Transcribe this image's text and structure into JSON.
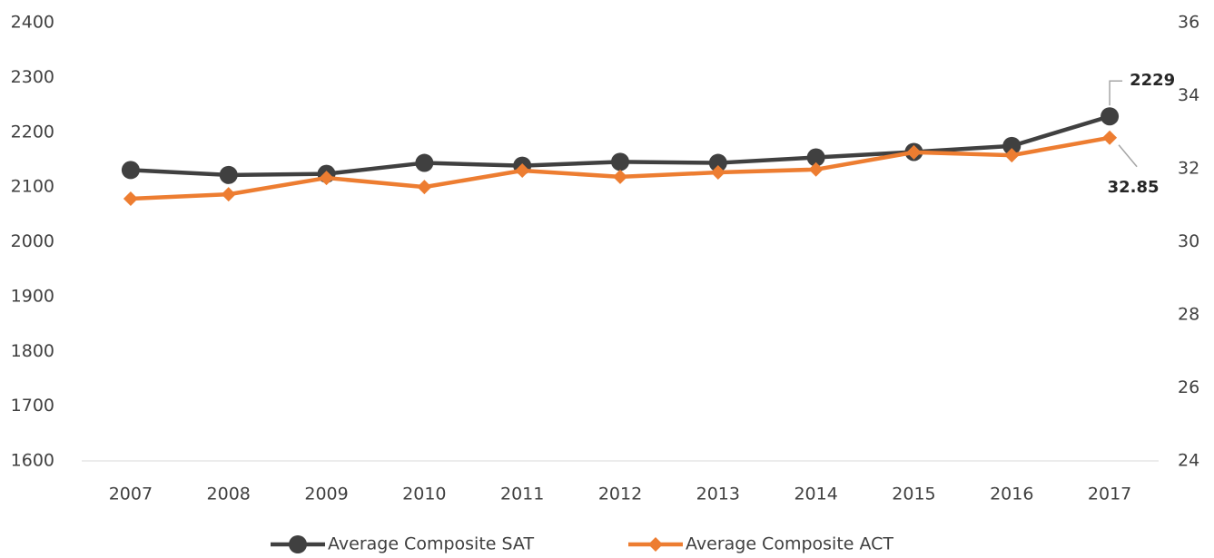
{
  "chart_data": {
    "type": "line",
    "categories": [
      "2007",
      "2008",
      "2009",
      "2010",
      "2011",
      "2012",
      "2013",
      "2014",
      "2015",
      "2016",
      "2017"
    ],
    "series": [
      {
        "name": "Average Composite SAT",
        "color": "#404040",
        "marker": "circle",
        "values": [
          2131,
          2122,
          2124,
          2144,
          2139,
          2146,
          2144,
          2154,
          2164,
          2175,
          2229
        ]
      },
      {
        "name": "Average Composite ACT",
        "color": "#ed7d31",
        "marker": "diamond",
        "axis": "y2",
        "values": [
          31.18,
          31.3,
          31.75,
          31.5,
          31.95,
          31.78,
          31.9,
          31.98,
          32.45,
          32.37,
          32.85
        ]
      }
    ],
    "ylim": [
      1600,
      2400
    ],
    "yticks": [
      1600,
      1700,
      1800,
      1900,
      2000,
      2100,
      2200,
      2300,
      2400
    ],
    "y2lim": [
      24,
      36
    ],
    "y2ticks": [
      24,
      26,
      28,
      30,
      32,
      34,
      36
    ],
    "grid": false,
    "legend": "bottom"
  }
}
